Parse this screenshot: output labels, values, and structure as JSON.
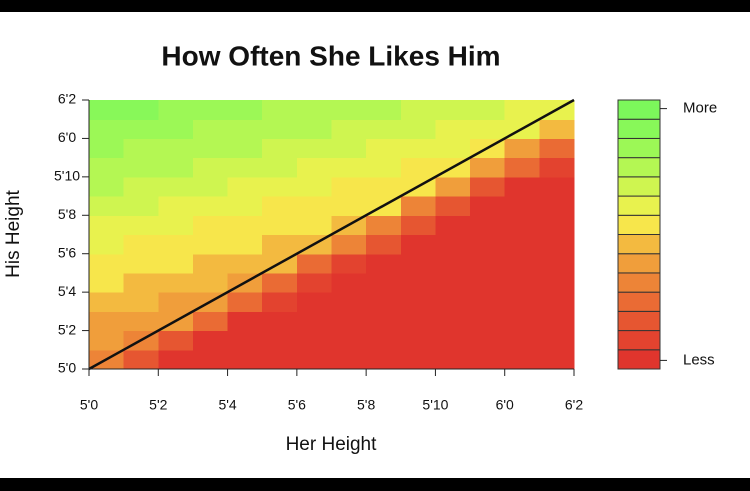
{
  "chart_data": {
    "type": "contour",
    "title": "How Often She Likes Him",
    "xlabel": "Her Height",
    "ylabel": "His Height",
    "x": [
      60.5,
      61.5,
      62.5,
      63.5,
      64.5,
      65.5,
      66.5,
      67.5,
      68.5,
      69.5,
      70.5,
      71.5,
      72.5,
      73.5
    ],
    "y": [
      60.5,
      61.5,
      62.5,
      63.5,
      64.5,
      65.5,
      66.5,
      67.5,
      68.5,
      69.5,
      70.5,
      71.5,
      72.5,
      73.5
    ],
    "z": [
      [
        4,
        2,
        0,
        0,
        0,
        0,
        0,
        0,
        0,
        0,
        0,
        0,
        0,
        0
      ],
      [
        5,
        4,
        2,
        0,
        0,
        0,
        0,
        0,
        0,
        0,
        0,
        0,
        0,
        0
      ],
      [
        5,
        5,
        5,
        3,
        0,
        0,
        0,
        0,
        0,
        0,
        0,
        0,
        0,
        0
      ],
      [
        6,
        6,
        5,
        5,
        3,
        1,
        0,
        0,
        0,
        0,
        0,
        0,
        0,
        0
      ],
      [
        7,
        6,
        6,
        6,
        5,
        3,
        1,
        0,
        0,
        0,
        0,
        0,
        0,
        0
      ],
      [
        7,
        7,
        7,
        6,
        6,
        6,
        3,
        1,
        0,
        0,
        0,
        0,
        0,
        0
      ],
      [
        8,
        7,
        7,
        7,
        7,
        6,
        6,
        4,
        2,
        0,
        0,
        0,
        0,
        0
      ],
      [
        8,
        8,
        8,
        7,
        7,
        7,
        7,
        6,
        4,
        2,
        0,
        0,
        0,
        0
      ],
      [
        9,
        9,
        8,
        8,
        8,
        7,
        7,
        7,
        7,
        4,
        2,
        0,
        0,
        0
      ],
      [
        10,
        9,
        9,
        9,
        8,
        8,
        8,
        7,
        7,
        7,
        5,
        2,
        0,
        0
      ],
      [
        10,
        10,
        10,
        9,
        9,
        9,
        8,
        8,
        8,
        7,
        7,
        5,
        3,
        1
      ],
      [
        11,
        10,
        10,
        10,
        10,
        9,
        9,
        9,
        8,
        8,
        8,
        7,
        5,
        3
      ],
      [
        11,
        11,
        11,
        10,
        10,
        10,
        10,
        9,
        9,
        9,
        8,
        8,
        8,
        6
      ],
      [
        12,
        12,
        11,
        11,
        11,
        10,
        10,
        10,
        10,
        9,
        9,
        9,
        8,
        8
      ]
    ],
    "colors": [
      "#e0352d",
      "#e3432f",
      "#e65631",
      "#ea6b34",
      "#ed8437",
      "#f09e3b",
      "#f3ba40",
      "#f7e64b",
      "#e8f24e",
      "#cff550",
      "#b4f753",
      "#9cf856",
      "#88f859",
      "#7cf75b"
    ],
    "colorbar": {
      "labels": [
        "More",
        "Less"
      ]
    },
    "line": {
      "x": [
        60,
        74
      ],
      "y": [
        60,
        74
      ],
      "color": "#111111"
    },
    "xlim": [
      60,
      74
    ],
    "ylim": [
      60,
      74
    ],
    "xticks": [
      {
        "value": 60,
        "label": "5'0"
      },
      {
        "value": 62,
        "label": "5'2"
      },
      {
        "value": 64,
        "label": "5'4"
      },
      {
        "value": 66,
        "label": "5'6"
      },
      {
        "value": 68,
        "label": "5'8"
      },
      {
        "value": 70,
        "label": "5'10"
      },
      {
        "value": 72,
        "label": "6'0"
      },
      {
        "value": 74,
        "label": "6'2"
      }
    ],
    "yticks": [
      {
        "value": 60,
        "label": "5'0"
      },
      {
        "value": 62,
        "label": "5'2"
      },
      {
        "value": 64,
        "label": "5'4"
      },
      {
        "value": 66,
        "label": "5'6"
      },
      {
        "value": 68,
        "label": "5'8"
      },
      {
        "value": 70,
        "label": "5'10"
      },
      {
        "value": 72,
        "label": "6'0"
      },
      {
        "value": 74,
        "label": "6'2"
      }
    ]
  }
}
